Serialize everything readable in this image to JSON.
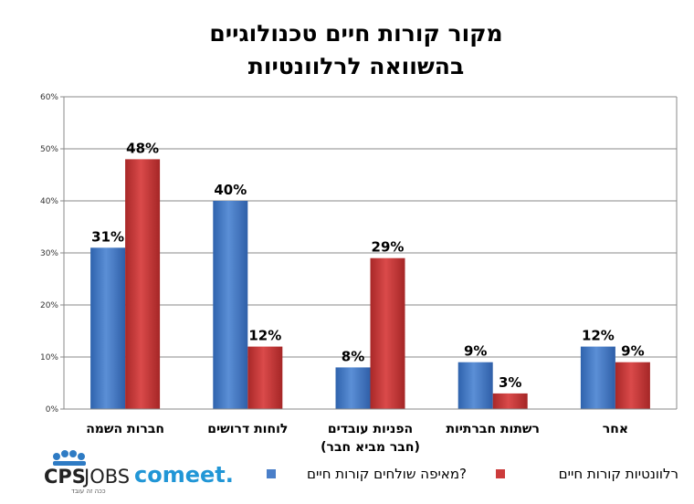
{
  "chart_data": {
    "type": "bar",
    "title_lines": [
      "מקור קורות חיים טכנולוגיים",
      "בהשוואה לרלוונטיות"
    ],
    "categories": [
      [
        "חברות השמה"
      ],
      [
        "לוחות דרושים"
      ],
      [
        "הפניות עובדים",
        "(חבר מביא חבר)"
      ],
      [
        "רשתות חברתיות"
      ],
      [
        "אחר"
      ]
    ],
    "series": [
      {
        "name": "מאיפה שולחים קורות חיים?",
        "color": "#4a7fc9",
        "values": [
          31,
          40,
          8,
          9,
          12
        ],
        "labels": [
          "31%",
          "40%",
          "8%",
          "9%",
          "12%"
        ]
      },
      {
        "name": "רלוונטיות קורות חיים",
        "color": "#cc3b3b",
        "values": [
          48,
          12,
          29,
          3,
          9
        ],
        "labels": [
          "48%",
          "12%",
          "29%",
          "3%",
          "9%"
        ]
      }
    ],
    "ylim": [
      0,
      60
    ],
    "yticks": [
      0,
      10,
      20,
      30,
      40,
      50,
      60
    ],
    "ytick_labels": [
      "0%",
      "10%",
      "20%",
      "30%",
      "40%",
      "50%",
      "60%"
    ],
    "grid": true,
    "legend_position": "bottom-right"
  },
  "logos": {
    "cps": {
      "main": "CPS",
      "sub": "JOBS",
      "tagline": "ככה זה עובד"
    },
    "comeet": {
      "text": "comeet."
    }
  }
}
